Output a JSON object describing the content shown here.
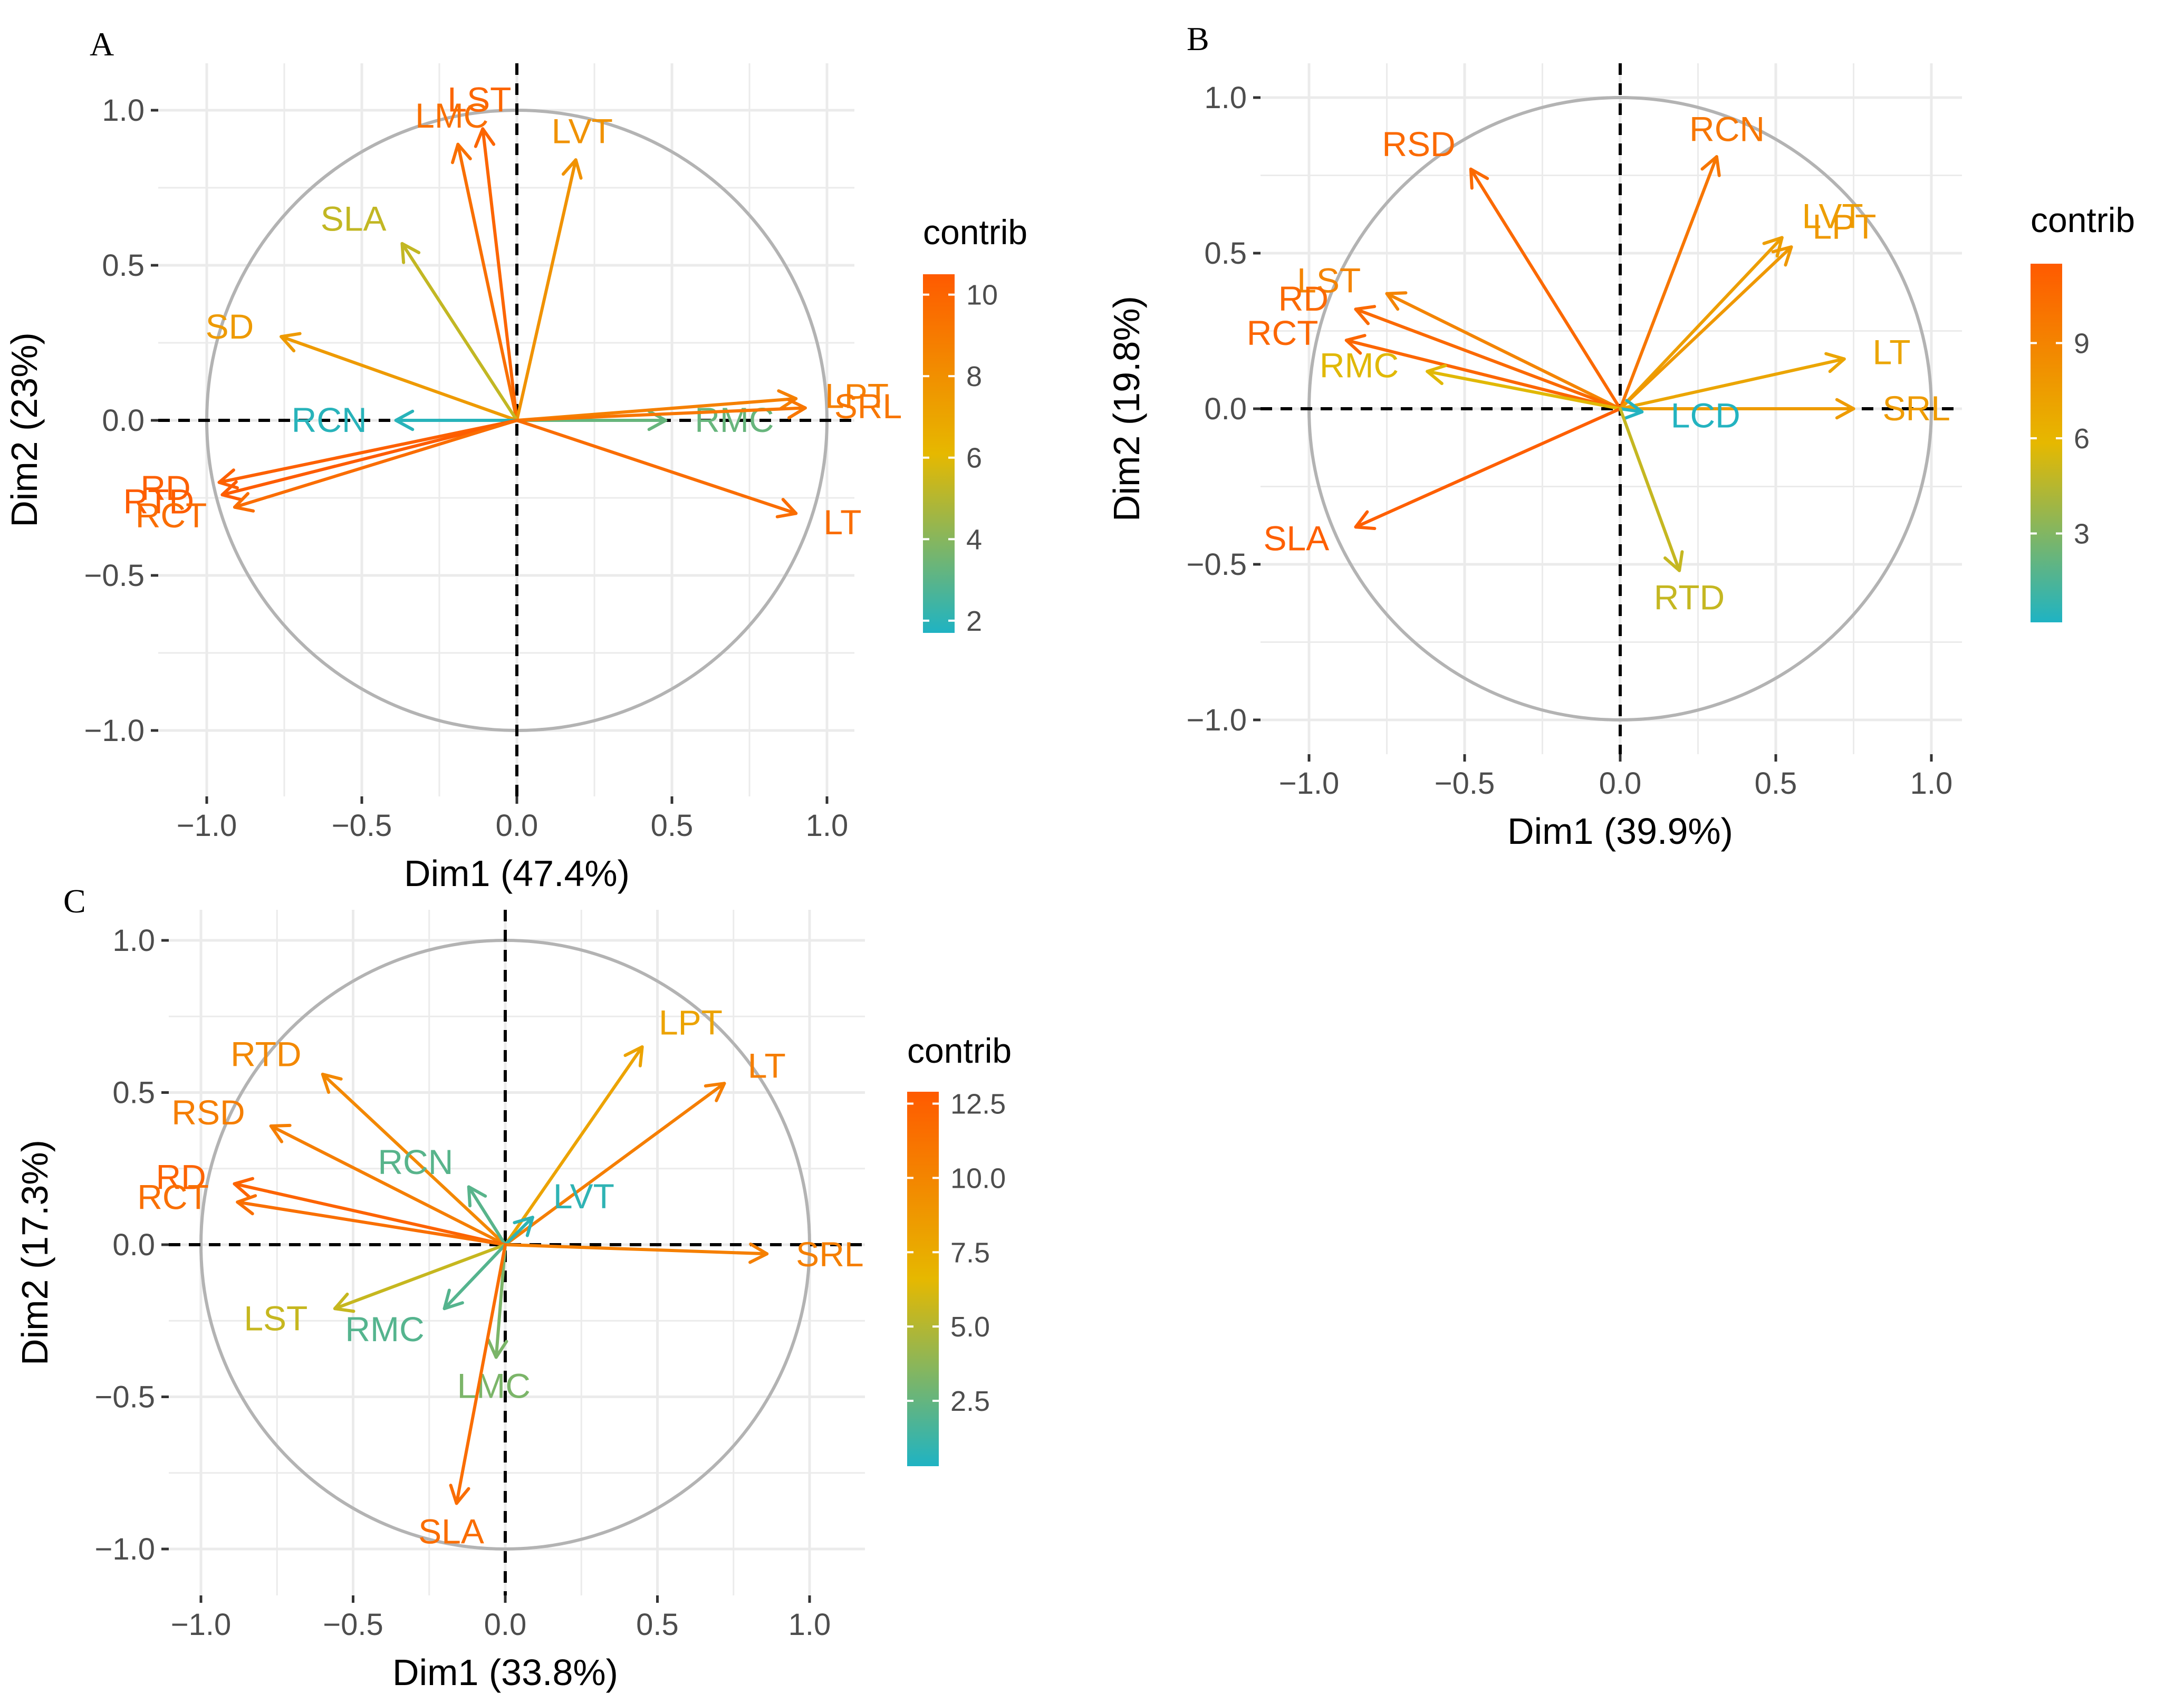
{
  "palette": {
    "low": "#1fb3c3",
    "mid": "#e6b800",
    "high": "#ff5a00",
    "circle": "#b3b3b3",
    "grid": "#ebebeb",
    "axis": "#000000"
  },
  "chart_data": [
    {
      "panel": "A",
      "type": "scatter",
      "subtype": "pca-variable-correlation-circle",
      "xlabel": "Dim1 (47.4%)",
      "ylabel": "Dim2 (23%)",
      "xlim": [
        -1.0,
        1.0
      ],
      "ylim": [
        -1.0,
        1.0
      ],
      "xticks": [
        "−1.0",
        "−0.5",
        "0.0",
        "0.5",
        "1.0"
      ],
      "yticks": [
        "−1.0",
        "−0.5",
        "0.0",
        "0.5",
        "1.0"
      ],
      "grid": true,
      "legend": {
        "title": "contrib",
        "placement": "right",
        "range": [
          1.7,
          10.5
        ],
        "ticks": [
          "2",
          "4",
          "6",
          "8",
          "10"
        ],
        "tick_values": [
          2,
          4,
          6,
          8,
          10
        ]
      },
      "variables": [
        {
          "name": "LST",
          "x": -0.11,
          "y": 0.94,
          "contrib": 10.0
        },
        {
          "name": "LMC",
          "x": -0.19,
          "y": 0.89,
          "contrib": 9.5
        },
        {
          "name": "LVT",
          "x": 0.19,
          "y": 0.84,
          "contrib": 7.9
        },
        {
          "name": "SLA",
          "x": -0.37,
          "y": 0.57,
          "contrib": 5.3
        },
        {
          "name": "SD",
          "x": -0.76,
          "y": 0.27,
          "contrib": 7.5
        },
        {
          "name": "RCN",
          "x": -0.39,
          "y": 0.0,
          "contrib": 1.9
        },
        {
          "name": "RMC",
          "x": 0.48,
          "y": 0.0,
          "contrib": 3.3
        },
        {
          "name": "LPT",
          "x": 0.9,
          "y": 0.07,
          "contrib": 8.7
        },
        {
          "name": "SRL",
          "x": 0.93,
          "y": 0.04,
          "contrib": 9.2
        },
        {
          "name": "LT",
          "x": 0.9,
          "y": -0.3,
          "contrib": 9.6
        },
        {
          "name": "RD",
          "x": -0.96,
          "y": -0.2,
          "contrib": 10.2
        },
        {
          "name": "RTD",
          "x": -0.95,
          "y": -0.24,
          "contrib": 10.4
        },
        {
          "name": "RCT",
          "x": -0.91,
          "y": -0.28,
          "contrib": 9.6
        }
      ]
    },
    {
      "panel": "B",
      "type": "scatter",
      "subtype": "pca-variable-correlation-circle",
      "xlabel": "Dim1 (39.9%)",
      "ylabel": "Dim2 (19.8%)",
      "xlim": [
        -1.0,
        1.0
      ],
      "ylim": [
        -1.0,
        1.0
      ],
      "xticks": [
        "−1.0",
        "−0.5",
        "0.0",
        "0.5",
        "1.0"
      ],
      "yticks": [
        "−1.0",
        "−0.5",
        "0.0",
        "0.5",
        "1.0"
      ],
      "grid": true,
      "legend": {
        "title": "contrib",
        "placement": "right",
        "range": [
          0.2,
          11.5
        ],
        "ticks": [
          "3",
          "6",
          "9"
        ],
        "tick_values": [
          3,
          6,
          9
        ]
      },
      "variables": [
        {
          "name": "RCN",
          "x": 0.31,
          "y": 0.81,
          "contrib": 9.8
        },
        {
          "name": "RSD",
          "x": -0.48,
          "y": 0.77,
          "contrib": 10.6
        },
        {
          "name": "LVT",
          "x": 0.52,
          "y": 0.55,
          "contrib": 7.4
        },
        {
          "name": "LPT",
          "x": 0.55,
          "y": 0.52,
          "contrib": 7.8
        },
        {
          "name": "LST",
          "x": -0.75,
          "y": 0.37,
          "contrib": 9.0
        },
        {
          "name": "RD",
          "x": -0.85,
          "y": 0.32,
          "contrib": 10.6
        },
        {
          "name": "RCT",
          "x": -0.88,
          "y": 0.22,
          "contrib": 10.8
        },
        {
          "name": "RMC",
          "x": -0.62,
          "y": 0.12,
          "contrib": 5.7
        },
        {
          "name": "LT",
          "x": 0.72,
          "y": 0.16,
          "contrib": 7.0
        },
        {
          "name": "SRL",
          "x": 0.75,
          "y": 0.0,
          "contrib": 7.6
        },
        {
          "name": "LCD",
          "x": 0.07,
          "y": -0.01,
          "contrib": 0.3
        },
        {
          "name": "SLA",
          "x": -0.85,
          "y": -0.38,
          "contrib": 11.2
        },
        {
          "name": "RTD",
          "x": 0.19,
          "y": -0.52,
          "contrib": 4.9
        }
      ]
    },
    {
      "panel": "C",
      "type": "scatter",
      "subtype": "pca-variable-correlation-circle",
      "xlabel": "Dim1 (33.8%)",
      "ylabel": "Dim2 (17.3%)",
      "xlim": [
        -1.0,
        1.0
      ],
      "ylim": [
        -1.0,
        1.0
      ],
      "xticks": [
        "−1.0",
        "−0.5",
        "0.0",
        "0.5",
        "1.0"
      ],
      "yticks": [
        "−1.0",
        "−0.5",
        "0.0",
        "0.5",
        "1.0"
      ],
      "grid": true,
      "legend": {
        "title": "contrib",
        "placement": "right",
        "range": [
          0.3,
          12.9
        ],
        "ticks": [
          "2.5",
          "5.0",
          "7.5",
          "10.0",
          "12.5"
        ],
        "tick_values": [
          2.5,
          5.0,
          7.5,
          10.0,
          12.5
        ]
      },
      "variables": [
        {
          "name": "LPT",
          "x": 0.45,
          "y": 0.65,
          "contrib": 8.0
        },
        {
          "name": "LT",
          "x": 0.72,
          "y": 0.53,
          "contrib": 10.5
        },
        {
          "name": "RTD",
          "x": -0.6,
          "y": 0.56,
          "contrib": 9.8
        },
        {
          "name": "RSD",
          "x": -0.77,
          "y": 0.39,
          "contrib": 10.5
        },
        {
          "name": "RCN",
          "x": -0.12,
          "y": 0.19,
          "contrib": 2.1
        },
        {
          "name": "RD",
          "x": -0.89,
          "y": 0.2,
          "contrib": 12.3
        },
        {
          "name": "RCT",
          "x": -0.88,
          "y": 0.14,
          "contrib": 11.5
        },
        {
          "name": "LVT",
          "x": 0.09,
          "y": 0.09,
          "contrib": 0.8
        },
        {
          "name": "SRL",
          "x": 0.86,
          "y": -0.03,
          "contrib": 10.4
        },
        {
          "name": "LST",
          "x": -0.56,
          "y": -0.21,
          "contrib": 5.6
        },
        {
          "name": "RMC",
          "x": -0.2,
          "y": -0.21,
          "contrib": 2.0
        },
        {
          "name": "LMC",
          "x": -0.03,
          "y": -0.37,
          "contrib": 3.2
        },
        {
          "name": "SLA",
          "x": -0.16,
          "y": -0.85,
          "contrib": 11.6
        }
      ]
    }
  ]
}
